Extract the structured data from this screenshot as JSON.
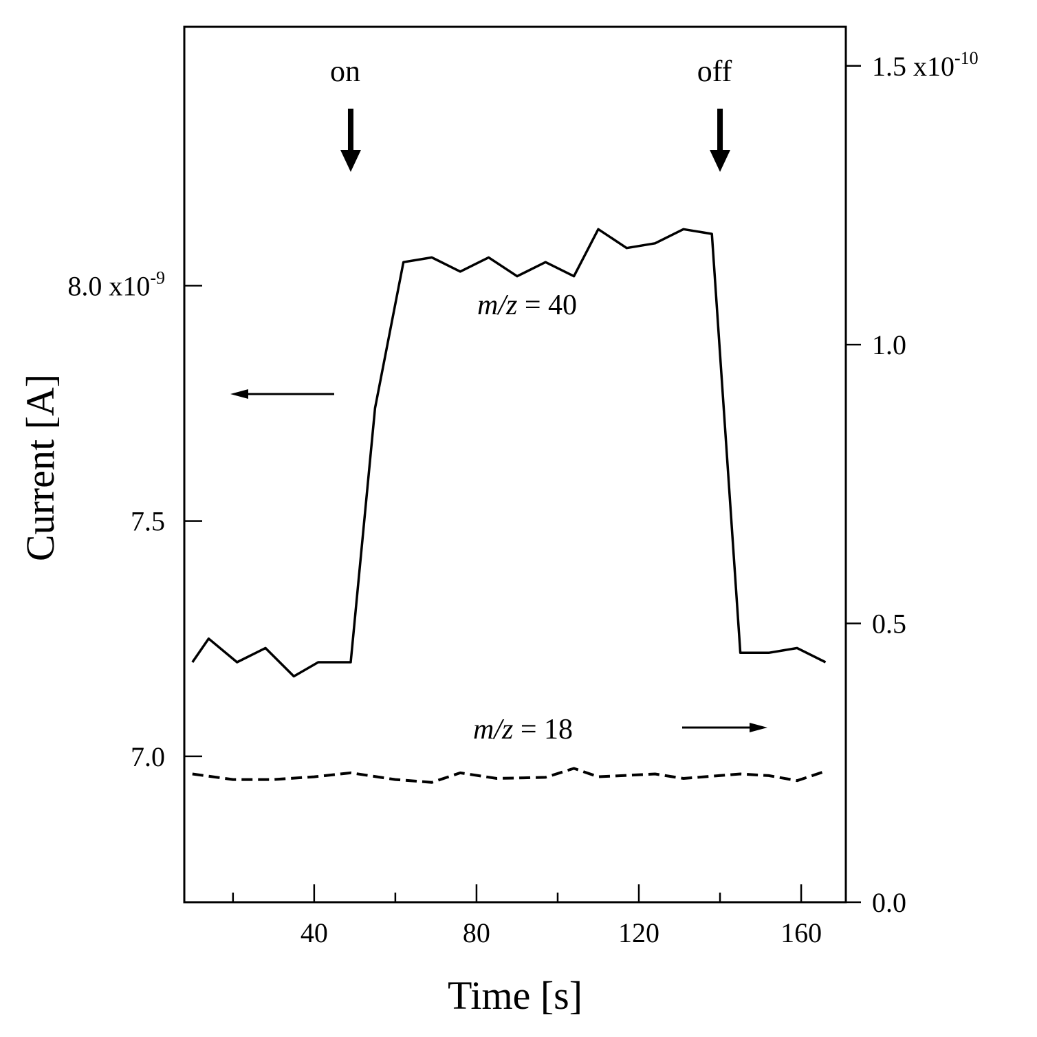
{
  "chart_data": {
    "type": "line",
    "xlabel": "Time [s]",
    "ylabel": "Current [A]",
    "xlim": [
      8,
      171
    ],
    "x_ticks_major": [
      40,
      80,
      120,
      160
    ],
    "x_ticks_minor": [
      20,
      60,
      100,
      140
    ],
    "left_axis": {
      "ylim": [
        6.69,
        8.55
      ],
      "ticks": [
        {
          "value": 7.0,
          "label": "7.0",
          "exp": ""
        },
        {
          "value": 7.5,
          "label": "7.5",
          "exp": ""
        },
        {
          "value": 8.0,
          "label": "8.0 x10",
          "exp": "-9"
        }
      ]
    },
    "right_axis": {
      "ylim": [
        0.0,
        1.57
      ],
      "ticks": [
        {
          "value": 0.0,
          "label": "0.0",
          "exp": ""
        },
        {
          "value": 0.5,
          "label": "0.5",
          "exp": ""
        },
        {
          "value": 1.0,
          "label": "1.0",
          "exp": ""
        },
        {
          "value": 1.5,
          "label": "1.5 x10",
          "exp": "-10"
        }
      ]
    },
    "series": [
      {
        "name": "m/z = 40",
        "label_math": "m/z",
        "label_value": "= 40",
        "axis": "left",
        "style": "solid",
        "x": [
          10,
          14,
          21,
          28,
          35,
          41,
          49,
          55,
          62,
          69,
          76,
          83,
          90,
          97,
          104,
          110,
          117,
          124,
          131,
          138,
          145,
          152,
          159,
          166
        ],
        "y": [
          7.2,
          7.25,
          7.2,
          7.23,
          7.17,
          7.2,
          7.2,
          7.74,
          8.05,
          8.06,
          8.03,
          8.06,
          8.02,
          8.05,
          8.02,
          8.12,
          8.08,
          8.09,
          8.12,
          8.11,
          7.22,
          7.22,
          7.23,
          7.2
        ]
      },
      {
        "name": "m/z = 18",
        "label_math": "m/z",
        "label_value": "= 18",
        "axis": "right",
        "style": "dashed",
        "x": [
          10,
          20,
          30,
          40,
          49,
          60,
          69,
          76,
          85,
          97,
          104,
          110,
          124,
          131,
          138,
          145,
          152,
          159,
          166
        ],
        "y": [
          0.23,
          0.22,
          0.22,
          0.225,
          0.232,
          0.22,
          0.215,
          0.232,
          0.222,
          0.224,
          0.24,
          0.225,
          0.23,
          0.222,
          0.226,
          0.23,
          0.227,
          0.218,
          0.235
        ]
      }
    ],
    "annotations": [
      {
        "text": "on",
        "x": 49
      },
      {
        "text": "off",
        "x": 140
      }
    ]
  }
}
